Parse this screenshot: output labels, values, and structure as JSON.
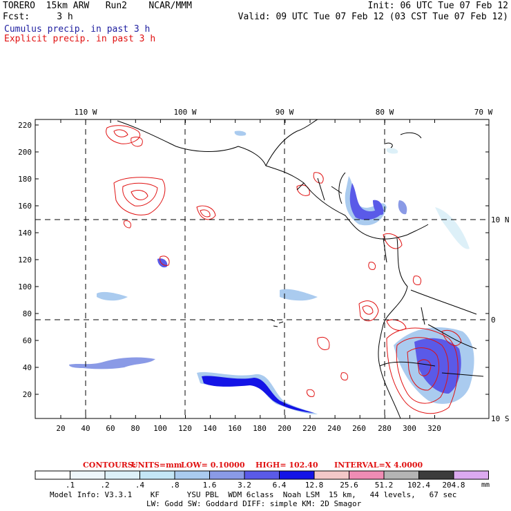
{
  "header": {
    "model_line": "TORERO  15km ARW   Run2    NCAR/MMM",
    "fcst_line": "Fcst:     3 h",
    "init_line": "Init: 06 UTC Tue 07 Feb 12",
    "valid_line": "Valid: 09 UTC Tue 07 Feb 12 (03 CST Tue 07 Feb 12)"
  },
  "legend": {
    "cumulus": "Cumulus precip. in past 3 h",
    "explicit": "Explicit precip. in past 3 h"
  },
  "axes": {
    "top_lon_labels": [
      "110 W",
      "100 W",
      "90 W",
      "80 W",
      "70 W"
    ],
    "right_lat_labels": [
      "10 N",
      "0",
      "10 S"
    ],
    "y_ticks": [
      "220",
      "200",
      "180",
      "160",
      "140",
      "120",
      "100",
      "80",
      "60",
      "40",
      "20"
    ],
    "x_ticks": [
      "20",
      "40",
      "60",
      "80",
      "100",
      "120",
      "140",
      "160",
      "180",
      "200",
      "220",
      "240",
      "260",
      "280",
      "300",
      "320"
    ]
  },
  "contours": {
    "label": "CONTOURS:",
    "units": "UNITS=mm",
    "low": "LOW= 0.10000",
    "high": "HIGH=  102.40",
    "interval": "INTERVAL=X  4.0000"
  },
  "colorbar": {
    "values": [
      ".1",
      ".2",
      ".4",
      ".8",
      "1.6",
      "3.2",
      "6.4",
      "12.8",
      "25.6",
      "51.2",
      "102.4",
      "204.8"
    ],
    "unit": "mm",
    "colors": [
      "#ffffff",
      "#eef6fb",
      "#ddf0f8",
      "#c4e6f6",
      "#aacbef",
      "#8a9ae6",
      "#5a5ae8",
      "#1414e6",
      "#f3c8c8",
      "#ef8cb4",
      "#b4b4b4",
      "#3c3c3c",
      "#dcaaf0"
    ]
  },
  "model_info": {
    "line1": "Model Info: V3.3.1    KF      YSU PBL  WDM 6class  Noah LSM  15 km,   44 levels,   67 sec",
    "line2": "LW: Godd SW: Goddard DIFF: simple KM: 2D Smagor"
  }
}
